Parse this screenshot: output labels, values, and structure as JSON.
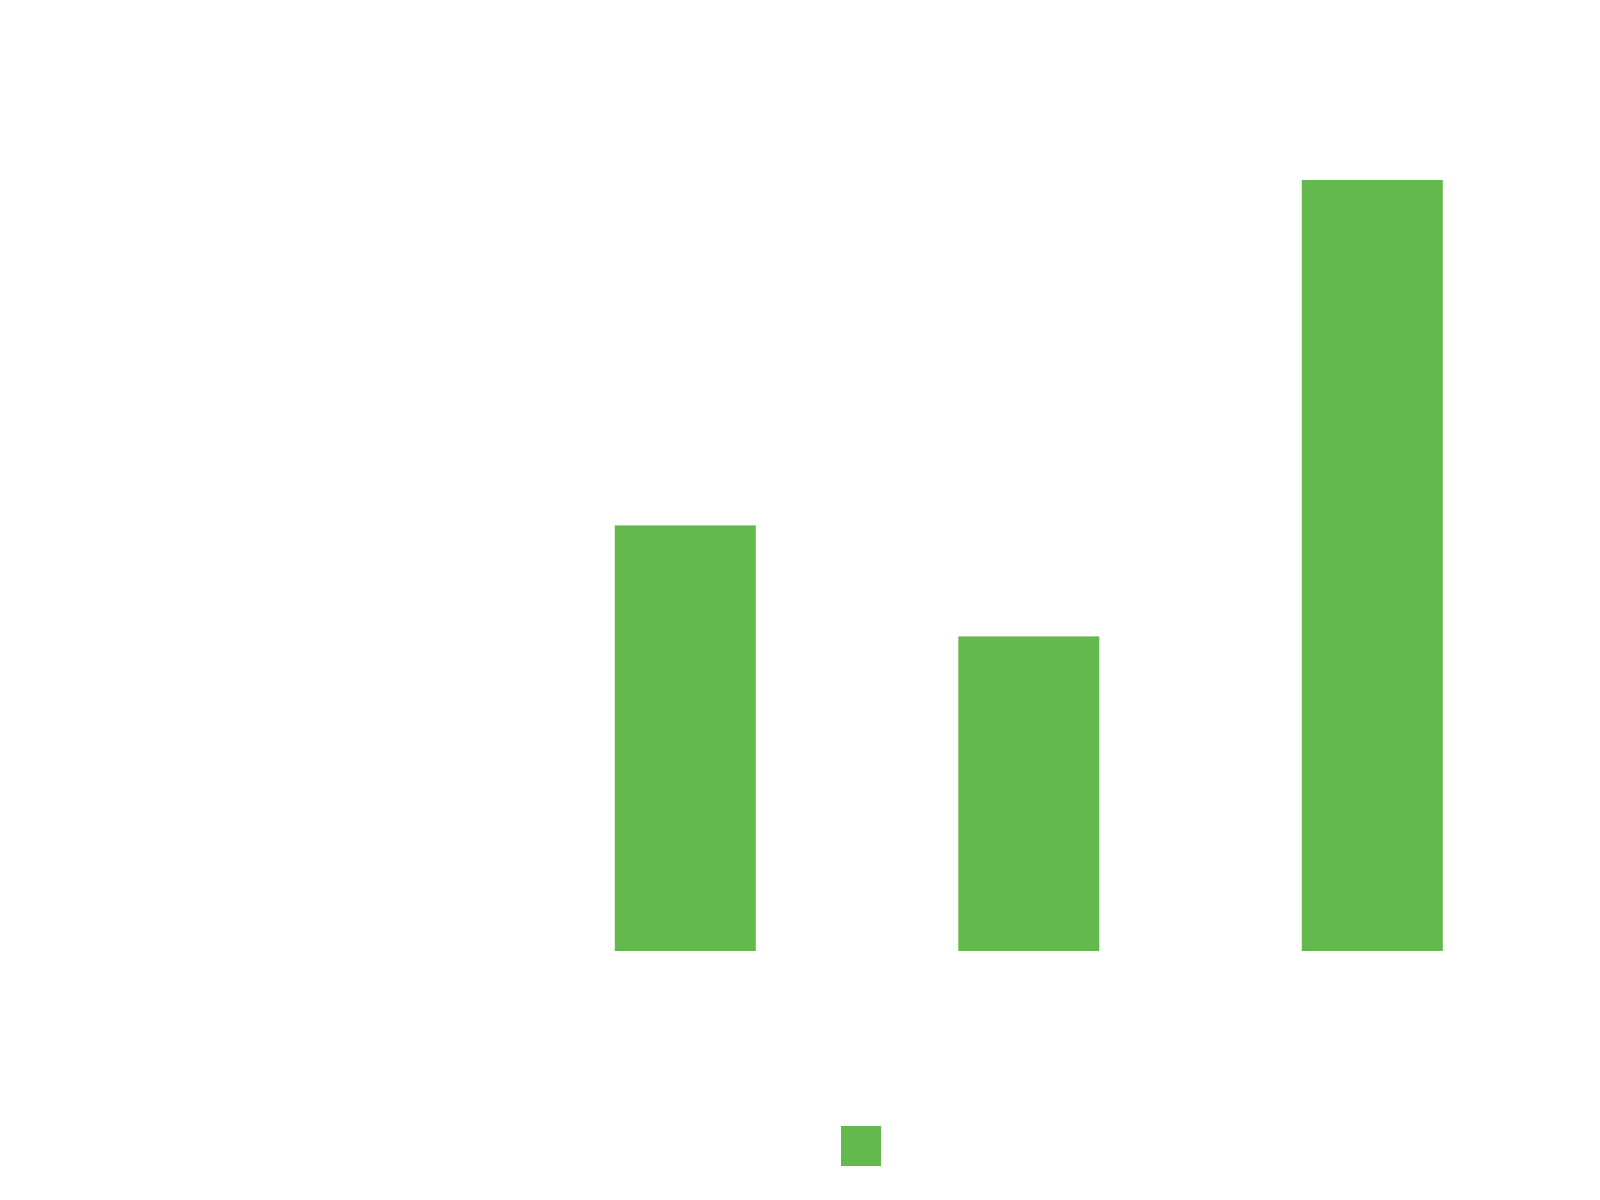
{
  "chart_data": {
    "type": "bar",
    "categories": [
      "",
      "",
      "",
      ""
    ],
    "series": [
      {
        "name": "",
        "color": "#63b94b",
        "values": [
          0,
          55.2,
          40.8,
          100
        ]
      }
    ],
    "title": "",
    "xlabel": "",
    "ylabel": "",
    "ylim": [
      0,
      100
    ],
    "grid": false,
    "legend": "bottom-center"
  }
}
